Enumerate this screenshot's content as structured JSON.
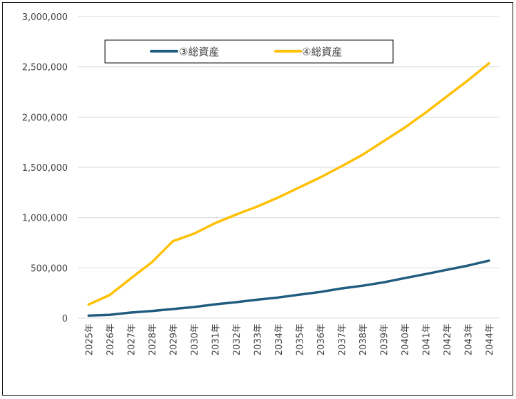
{
  "chart_data": {
    "type": "line",
    "categories": [
      "2025年",
      "2026年",
      "2027年",
      "2028年",
      "2029年",
      "2030年",
      "2031年",
      "2032年",
      "2033年",
      "2034年",
      "2035年",
      "2036年",
      "2037年",
      "2038年",
      "2039年",
      "2040年",
      "2041年",
      "2042年",
      "2043年",
      "2044年"
    ],
    "series": [
      {
        "name": "③総資産",
        "color": "#1F5C7F",
        "values": [
          25000,
          33000,
          55000,
          70000,
          90000,
          110000,
          137000,
          158000,
          183000,
          205000,
          233000,
          260000,
          295000,
          322000,
          356000,
          398000,
          438000,
          480000,
          522000,
          572000
        ]
      },
      {
        "name": "④総資産",
        "color": "#FFC000",
        "values": [
          135000,
          230000,
          395000,
          555000,
          765000,
          840000,
          945000,
          1030000,
          1110000,
          1200000,
          1300000,
          1400000,
          1510000,
          1625000,
          1760000,
          1895000,
          2045000,
          2205000,
          2365000,
          2535000
        ]
      }
    ],
    "ylim": [
      0,
      3000000
    ],
    "yticks": [
      0,
      500000,
      1000000,
      1500000,
      2000000,
      2500000,
      3000000
    ],
    "ytick_labels": [
      "0",
      "500,000",
      "1,000,000",
      "1,500,000",
      "2,000,000",
      "2,500,000",
      "3,000,000"
    ],
    "grid": true,
    "legend_position": "top",
    "gridline_color": "#D9D9D9"
  }
}
